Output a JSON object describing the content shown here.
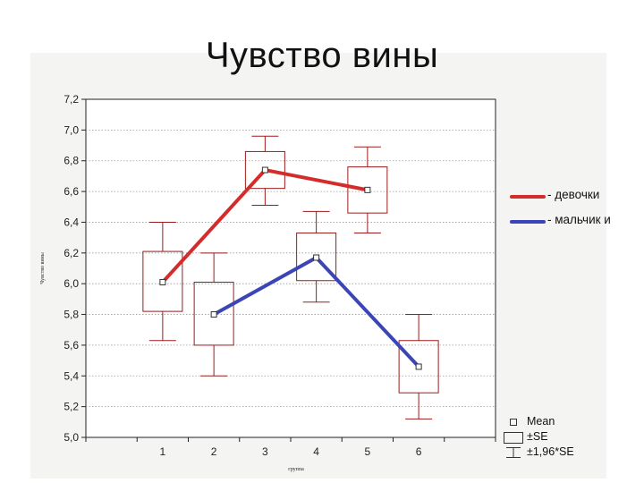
{
  "title": "Чувство вины",
  "legend_side": [
    {
      "label": "- девочки",
      "color": "#d42b2b"
    },
    {
      "label": "- мальчик и",
      "color": "#3b45b8"
    }
  ],
  "legend_box": {
    "mean": "Mean",
    "se": "±SE",
    "ci": "±1,96*SE"
  },
  "chart_data": {
    "type": "box",
    "title": "Чувство вины",
    "xlabel": "группа",
    "ylabel": "Чувство вины",
    "categories": [
      "1",
      "2",
      "3",
      "4",
      "5",
      "6"
    ],
    "ylim": [
      5.0,
      7.2
    ],
    "yticks": [
      "5,0",
      "5,2",
      "5,4",
      "5,6",
      "5,8",
      "6,0",
      "6,2",
      "6,4",
      "6,6",
      "6,8",
      "7,0",
      "7,2"
    ],
    "grid": true,
    "boxes": [
      {
        "group": "1",
        "mean": 6.01,
        "se_low": 5.82,
        "se_high": 6.21,
        "ci_low": 5.63,
        "ci_high": 6.4
      },
      {
        "group": "2",
        "mean": 5.8,
        "se_low": 5.6,
        "se_high": 6.01,
        "ci_low": 5.4,
        "ci_high": 6.2
      },
      {
        "group": "3",
        "mean": 6.74,
        "se_low": 6.62,
        "se_high": 6.86,
        "ci_low": 6.51,
        "ci_high": 6.96
      },
      {
        "group": "4",
        "mean": 6.17,
        "se_low": 6.02,
        "se_high": 6.33,
        "ci_low": 5.88,
        "ci_high": 6.47
      },
      {
        "group": "5",
        "mean": 6.61,
        "se_low": 6.46,
        "se_high": 6.76,
        "ci_low": 6.33,
        "ci_high": 6.89
      },
      {
        "group": "6",
        "mean": 5.46,
        "se_low": 5.29,
        "se_high": 5.63,
        "ci_low": 5.12,
        "ci_high": 5.8
      }
    ],
    "series": [
      {
        "name": "девочки",
        "color": "#d42b2b",
        "x": [
          "1",
          "3",
          "5"
        ],
        "values": [
          6.01,
          6.74,
          6.61
        ]
      },
      {
        "name": "мальчики",
        "color": "#3b45b8",
        "x": [
          "2",
          "4",
          "6"
        ],
        "values": [
          5.8,
          6.17,
          5.46
        ]
      }
    ],
    "box_color": "#9b1c1c"
  }
}
